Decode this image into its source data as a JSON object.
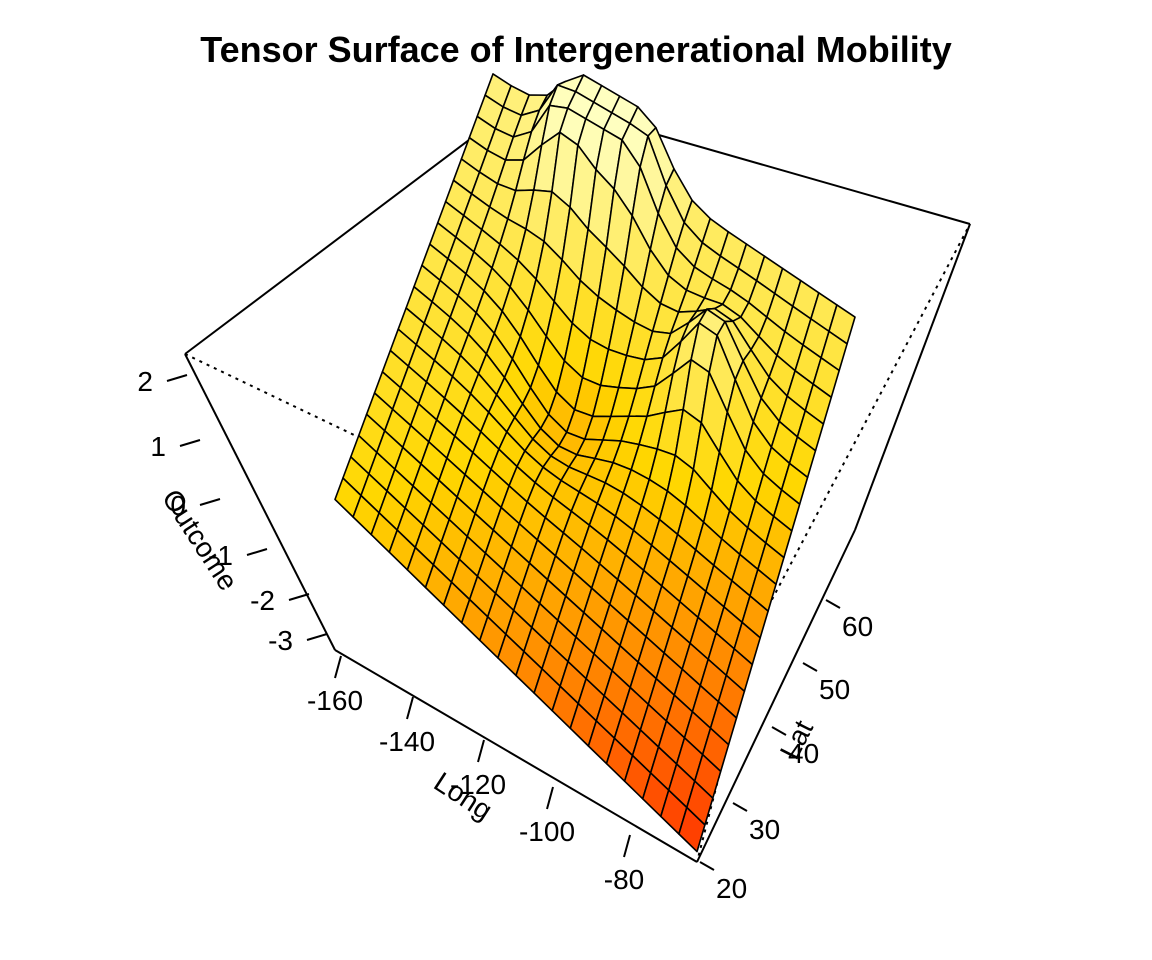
{
  "chart_data": {
    "type": "surface",
    "title": "Tensor Surface of Intergenerational Mobility",
    "xlabel": "Long",
    "ylabel": "Lat",
    "zlabel": "Outcome",
    "xlim": [
      -165,
      -70
    ],
    "ylim": [
      20,
      70
    ],
    "zlim": [
      -3.5,
      2.2
    ],
    "x_ticks": [
      "-160",
      "-140",
      "-120",
      "-100",
      "-80"
    ],
    "y_ticks": [
      "20",
      "30",
      "40",
      "50",
      "60"
    ],
    "z_ticks": [
      "2",
      "1",
      "0",
      "-1",
      "-2",
      "-3"
    ],
    "grid": {
      "nx": 20,
      "ny": 20
    },
    "colormap": {
      "low": "#ff2a00",
      "mid": "#ffd700",
      "high": "#ffffc0"
    },
    "surface": {
      "description_of_shape": "outcome values estimated on a 20 x 20 grid of Long and Lat",
      "base_level": -0.3,
      "long_slope_east": -2.4,
      "peaks": [
        {
          "long": -140,
          "lat": 66,
          "height": 1.9
        },
        {
          "long": -126,
          "lat": 67,
          "height": 1.6
        },
        {
          "long": -96,
          "lat": 55,
          "height": 1.5
        }
      ],
      "valley": {
        "long": -128,
        "lat": 49,
        "depth": -1.0
      },
      "corner_values": {
        "long_-165_lat_20": -0.6,
        "long_-70_lat_20": -3.3,
        "long_-165_lat_70": 1.2,
        "long_-70_lat_70": 0.6
      }
    }
  }
}
